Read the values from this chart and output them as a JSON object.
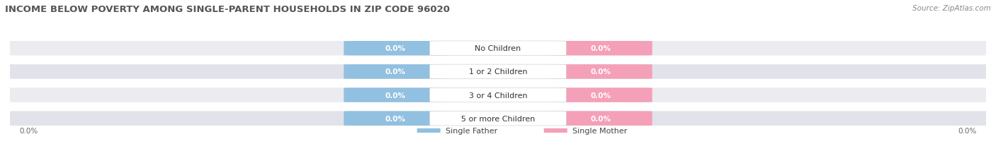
{
  "title": "INCOME BELOW POVERTY AMONG SINGLE-PARENT HOUSEHOLDS IN ZIP CODE 96020",
  "source": "Source: ZipAtlas.com",
  "categories": [
    "No Children",
    "1 or 2 Children",
    "3 or 4 Children",
    "5 or more Children"
  ],
  "father_values": [
    0.0,
    0.0,
    0.0,
    0.0
  ],
  "mother_values": [
    0.0,
    0.0,
    0.0,
    0.0
  ],
  "father_color": "#92C0E0",
  "mother_color": "#F4A0B8",
  "row_bg_colors": [
    "#EBEBF0",
    "#E2E2EA"
  ],
  "title_fontsize": 9.5,
  "source_fontsize": 7.5,
  "value_fontsize": 7.5,
  "category_fontsize": 8,
  "legend_fontsize": 8,
  "axis_label_fontsize": 7.5,
  "left_axis_label": "0.0%",
  "right_axis_label": "0.0%",
  "legend_father": "Single Father",
  "legend_mother": "Single Mother",
  "background_color": "#FFFFFF",
  "title_color": "#555555",
  "value_text_color": "#FFFFFF",
  "category_text_color": "#333333",
  "axis_label_color": "#666666",
  "legend_text_color": "#444444"
}
